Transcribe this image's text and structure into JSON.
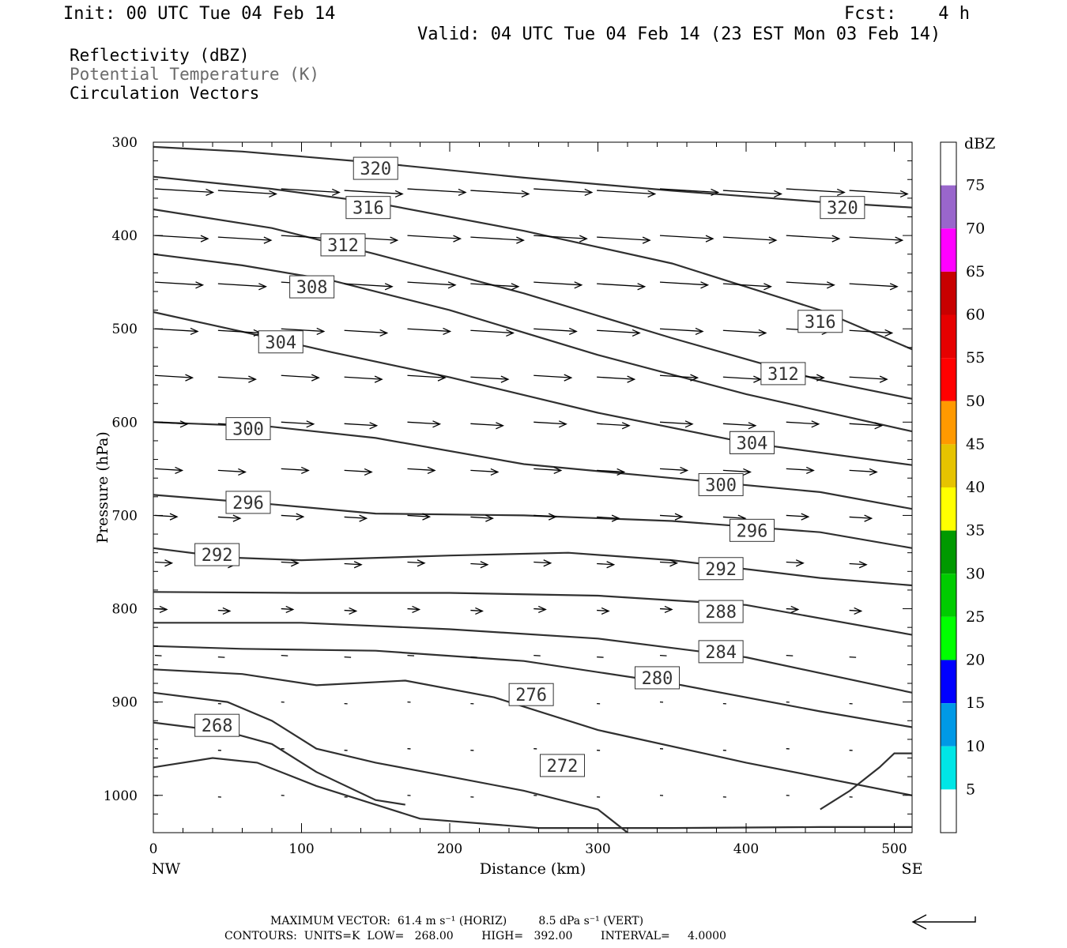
{
  "header": {
    "init": "Init: 00 UTC Tue 04 Feb 14",
    "fcst": "Fcst:    4 h",
    "valid": "Valid: 04 UTC Tue 04 Feb 14 (23 EST Mon 03 Feb 14)"
  },
  "fields": {
    "reflectivity": "Reflectivity (dBZ)",
    "theta": "Potential Temperature (K)",
    "vectors": "Circulation Vectors"
  },
  "colors": {
    "theta_label": "#6a6a6a",
    "contour": "#303030"
  },
  "chart_data": {
    "type": "line",
    "title": "",
    "xlabel": "Distance (km)",
    "ylabel": "Pressure (hPa)",
    "xlim": [
      0,
      512
    ],
    "ylim": [
      1040,
      300
    ],
    "x_ticks": [
      0,
      100,
      200,
      300,
      400,
      500
    ],
    "y_ticks": [
      300,
      400,
      500,
      600,
      700,
      800,
      900,
      1000
    ],
    "x_end_labels": {
      "left": "NW",
      "right": "SE"
    },
    "y_scale": "linear",
    "y_inverted": true,
    "contour_units": "K",
    "series": [
      {
        "name": "320",
        "points": [
          [
            0,
            305
          ],
          [
            60,
            310
          ],
          [
            150,
            322
          ],
          [
            250,
            338
          ],
          [
            350,
            352
          ],
          [
            450,
            364
          ],
          [
            512,
            370
          ]
        ],
        "labels": [
          [
            150,
            328
          ],
          [
            465,
            370
          ]
        ]
      },
      {
        "name": "316",
        "points": [
          [
            0,
            337
          ],
          [
            80,
            350
          ],
          [
            150,
            365
          ],
          [
            250,
            395
          ],
          [
            350,
            430
          ],
          [
            450,
            480
          ],
          [
            512,
            522
          ]
        ],
        "labels": [
          [
            145,
            370
          ],
          [
            450,
            492
          ]
        ]
      },
      {
        "name": "312",
        "points": [
          [
            0,
            372
          ],
          [
            80,
            392
          ],
          [
            150,
            420
          ],
          [
            250,
            462
          ],
          [
            350,
            510
          ],
          [
            450,
            555
          ],
          [
            512,
            575
          ]
        ],
        "labels": [
          [
            128,
            410
          ],
          [
            425,
            548
          ]
        ]
      },
      {
        "name": "308",
        "points": [
          [
            0,
            420
          ],
          [
            60,
            432
          ],
          [
            120,
            448
          ],
          [
            200,
            480
          ],
          [
            300,
            528
          ],
          [
            400,
            570
          ],
          [
            512,
            610
          ]
        ],
        "labels": [
          [
            107,
            455
          ],
          [
            404,
            622
          ]
        ]
      },
      {
        "name": "304",
        "points": [
          [
            0,
            482
          ],
          [
            60,
            503
          ],
          [
            120,
            525
          ],
          [
            200,
            552
          ],
          [
            300,
            590
          ],
          [
            400,
            622
          ],
          [
            512,
            646
          ]
        ],
        "labels": [
          [
            86,
            514
          ],
          [
            404,
            622
          ]
        ]
      },
      {
        "name": "300",
        "points": [
          [
            0,
            600
          ],
          [
            80,
            605
          ],
          [
            150,
            617
          ],
          [
            250,
            645
          ],
          [
            350,
            660
          ],
          [
            450,
            675
          ],
          [
            512,
            693
          ]
        ],
        "labels": [
          [
            64,
            607
          ],
          [
            383,
            667
          ]
        ]
      },
      {
        "name": "296",
        "points": [
          [
            0,
            678
          ],
          [
            80,
            688
          ],
          [
            150,
            698
          ],
          [
            250,
            700
          ],
          [
            350,
            706
          ],
          [
            450,
            718
          ],
          [
            512,
            735
          ]
        ],
        "labels": [
          [
            64,
            686
          ],
          [
            404,
            716
          ]
        ]
      },
      {
        "name": "292",
        "points": [
          [
            0,
            735
          ],
          [
            50,
            745
          ],
          [
            100,
            748
          ],
          [
            200,
            743
          ],
          [
            280,
            740
          ],
          [
            350,
            748
          ],
          [
            450,
            767
          ],
          [
            512,
            775
          ]
        ],
        "labels": [
          [
            43,
            742
          ],
          [
            383,
            757
          ]
        ]
      },
      {
        "name": "288",
        "points": [
          [
            0,
            782
          ],
          [
            100,
            783
          ],
          [
            200,
            783
          ],
          [
            300,
            786
          ],
          [
            400,
            796
          ],
          [
            512,
            828
          ]
        ],
        "labels": [
          [
            383,
            803
          ]
        ]
      },
      {
        "name": "284",
        "points": [
          [
            0,
            815
          ],
          [
            100,
            815
          ],
          [
            200,
            822
          ],
          [
            300,
            832
          ],
          [
            400,
            852
          ],
          [
            512,
            890
          ]
        ],
        "labels": [
          [
            383,
            846
          ]
        ]
      },
      {
        "name": "280",
        "points": [
          [
            0,
            840
          ],
          [
            60,
            843
          ],
          [
            150,
            845
          ],
          [
            250,
            856
          ],
          [
            350,
            880
          ],
          [
            450,
            910
          ],
          [
            512,
            927
          ]
        ],
        "labels": [
          [
            340,
            874
          ]
        ]
      },
      {
        "name": "276",
        "points": [
          [
            0,
            865
          ],
          [
            60,
            870
          ],
          [
            110,
            882
          ],
          [
            170,
            877
          ],
          [
            230,
            895
          ],
          [
            300,
            930
          ],
          [
            400,
            965
          ],
          [
            512,
            1000
          ]
        ],
        "labels": [
          [
            255,
            892
          ]
        ]
      },
      {
        "name": "272",
        "points": [
          [
            0,
            890
          ],
          [
            50,
            900
          ],
          [
            80,
            920
          ],
          [
            110,
            950
          ],
          [
            150,
            965
          ],
          [
            200,
            980
          ],
          [
            250,
            995
          ],
          [
            300,
            1015
          ],
          [
            320,
            1040
          ]
        ],
        "labels": [
          [
            276,
            968
          ]
        ]
      },
      {
        "name": "268",
        "points": [
          [
            0,
            922
          ],
          [
            50,
            932
          ],
          [
            80,
            945
          ],
          [
            110,
            975
          ],
          [
            150,
            1005
          ],
          [
            170,
            1010
          ]
        ],
        "labels": [
          [
            43,
            925
          ]
        ]
      }
    ],
    "secondary_series": [
      {
        "name": "272-SE",
        "points": [
          [
            450,
            1015
          ],
          [
            470,
            995
          ],
          [
            490,
            970
          ],
          [
            500,
            955
          ],
          [
            512,
            955
          ]
        ]
      },
      {
        "name": "surface",
        "points": [
          [
            0,
            970
          ],
          [
            40,
            960
          ],
          [
            70,
            965
          ],
          [
            110,
            990
          ],
          [
            180,
            1025
          ],
          [
            260,
            1035
          ],
          [
            350,
            1035
          ],
          [
            450,
            1034
          ],
          [
            512,
            1034
          ]
        ]
      }
    ],
    "vectors_hpa": [
      300,
      350,
      400,
      450,
      500,
      550,
      600,
      650,
      700,
      750,
      800,
      850,
      900,
      950,
      1000
    ],
    "dbz_colorbar": {
      "unit": "dBZ",
      "levels": [
        5,
        10,
        15,
        20,
        25,
        30,
        35,
        40,
        45,
        50,
        55,
        60,
        65,
        70,
        75
      ],
      "colors": [
        "#ffffff",
        "#00e6e6",
        "#0099e6",
        "#0000ff",
        "#00ff00",
        "#00cc00",
        "#009900",
        "#ffff00",
        "#e6c300",
        "#ff9900",
        "#ff0000",
        "#e60000",
        "#c80000",
        "#ff00ff",
        "#9966cc",
        "#ffffff"
      ]
    }
  },
  "footer": {
    "max_vector": "MAXIMUM VECTOR:  61.4 m s⁻¹ (HORIZ)         8.5 dPa s⁻¹ (VERT)",
    "contours": "CONTOURS:  UNITS=K  LOW=   268.00        HIGH=   392.00        INTERVAL=     4.0000"
  }
}
